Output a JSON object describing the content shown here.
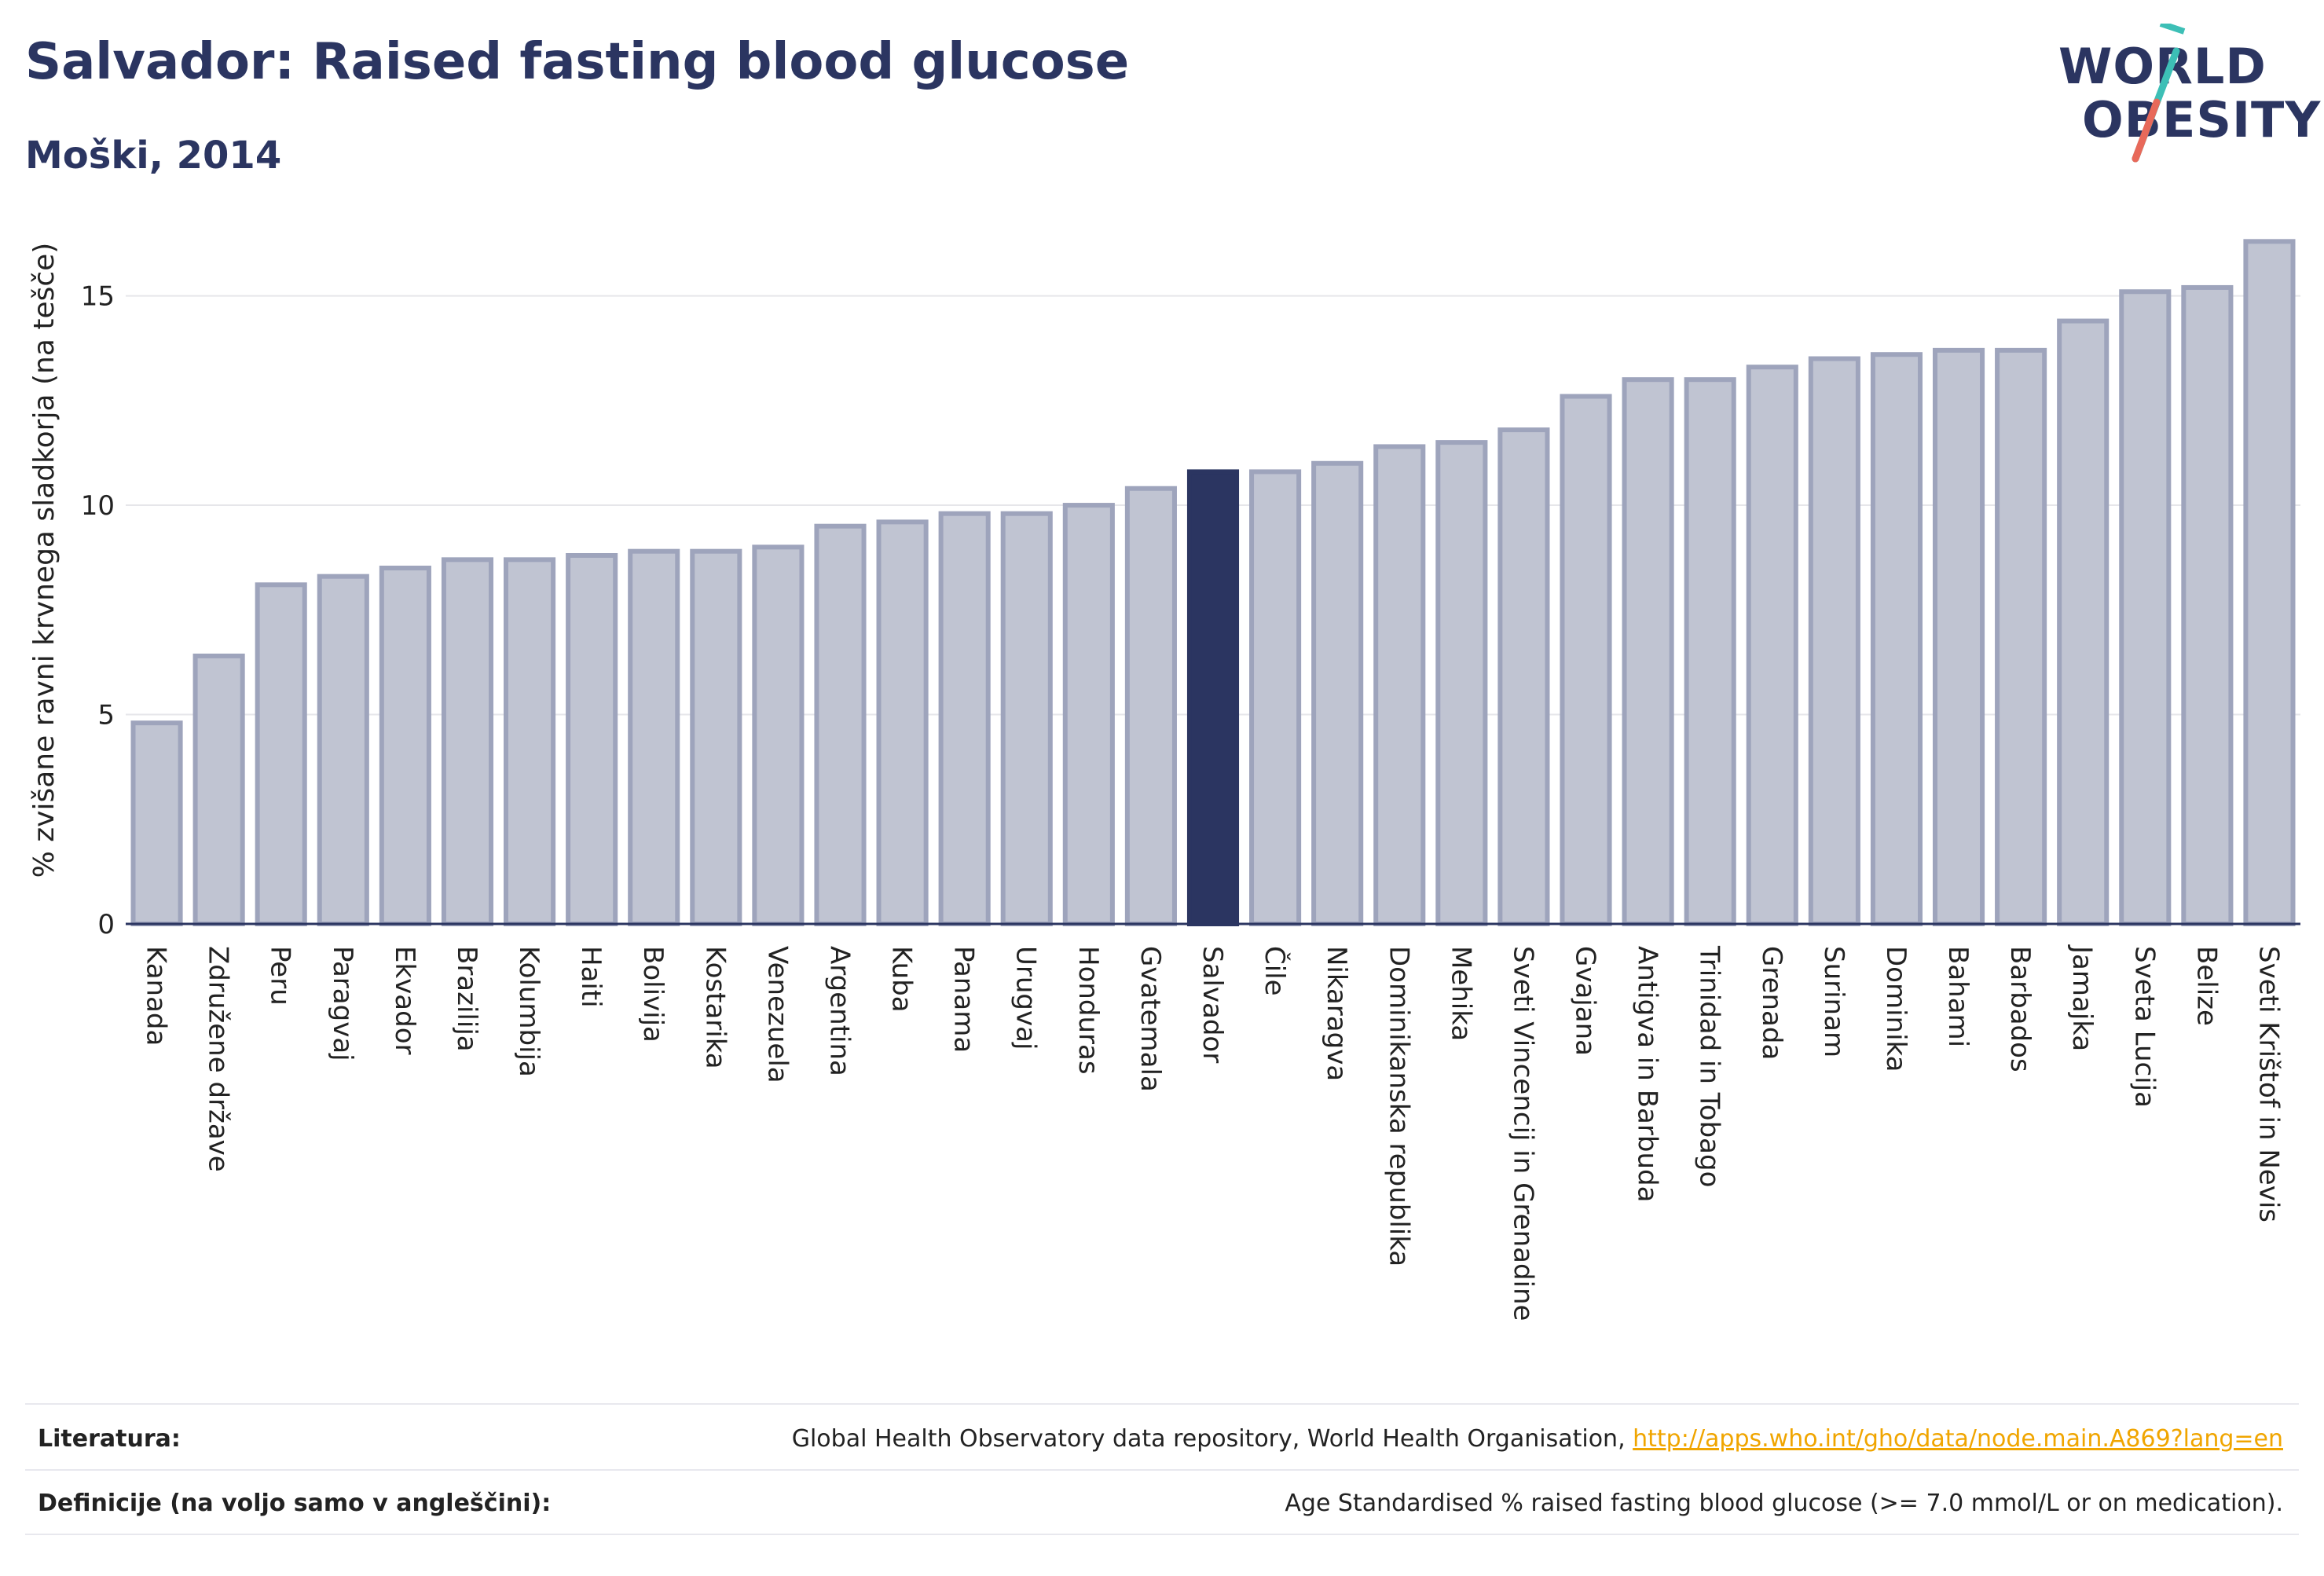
{
  "header": {
    "title": "Salvador: Raised fasting blood glucose",
    "subtitle": "Moški, 2014"
  },
  "logo": {
    "line1": "WORLD",
    "line2": "OBESITY",
    "accent_colors": [
      "#3dbfb6",
      "#e8695a"
    ]
  },
  "colors": {
    "bar": "#c0c4d2",
    "bar_border": "#9ea4bc",
    "highlight": "#2b3561",
    "axis_text": "#222222",
    "grid": "#e6e6ea"
  },
  "chart_data": {
    "type": "bar",
    "ylabel": "% zvišane ravni krvnega sladkorja (na tešče)",
    "ylim": [
      0,
      17
    ],
    "yticks": [
      0,
      5,
      10,
      15
    ],
    "grid": true,
    "highlight": "Salvador",
    "categories": [
      "Kanada",
      "Združene države",
      "Peru",
      "Paragvaj",
      "Ekvador",
      "Brazilija",
      "Kolumbija",
      "Haiti",
      "Bolivija",
      "Kostarika",
      "Venezuela",
      "Argentina",
      "Kuba",
      "Panama",
      "Urugvaj",
      "Honduras",
      "Gvatemala",
      "Salvador",
      "Čile",
      "Nikaragva",
      "Dominikanska republika",
      "Mehika",
      "Sveti Vincencij in Grenadine",
      "Gvajana",
      "Antigva in Barbuda",
      "Trinidad in Tobago",
      "Grenada",
      "Surinam",
      "Dominika",
      "Bahami",
      "Barbados",
      "Jamajka",
      "Sveta Lucija",
      "Belize",
      "Sveti Krištof in Nevis"
    ],
    "values": [
      4.8,
      6.4,
      8.1,
      8.3,
      8.5,
      8.7,
      8.7,
      8.8,
      8.9,
      8.9,
      9.0,
      9.5,
      9.6,
      9.8,
      9.8,
      10.0,
      10.4,
      10.8,
      10.8,
      11.0,
      11.4,
      11.5,
      11.8,
      12.6,
      13.0,
      13.0,
      13.3,
      13.5,
      13.6,
      13.7,
      13.7,
      14.4,
      15.1,
      15.2,
      16.3
    ]
  },
  "footer": {
    "rows": [
      {
        "label": "Literatura:",
        "text": "Global Health Observatory data repository, World Health Organisation, ",
        "link": "http://apps.who.int/gho/data/node.main.A869?lang=en"
      },
      {
        "label": "Definicije (na voljo samo v angleščini):",
        "text": "Age Standardised % raised fasting blood glucose (>= 7.0 mmol/L or on medication).",
        "link": ""
      }
    ]
  }
}
